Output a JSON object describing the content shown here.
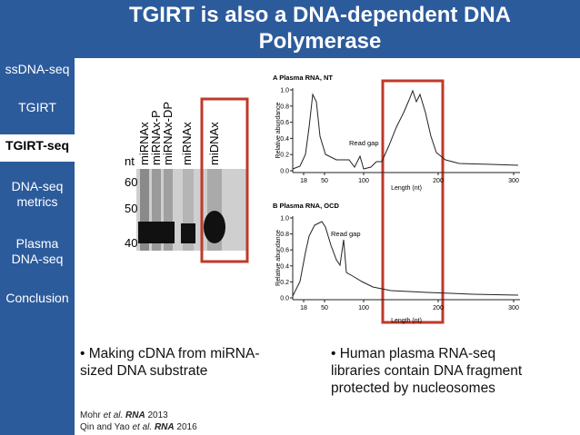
{
  "header": {
    "title": "TGIRT is also a DNA-dependent DNA Polymerase"
  },
  "sidebar": {
    "items": [
      "ssDNA-seq",
      "TGIRT",
      "TGIRT-seq",
      "DNA-seq metrics",
      "Plasma DNA-seq",
      "Conclusion"
    ],
    "active_index": 2
  },
  "gel": {
    "lanes": [
      "miRNAx",
      "miRNAx-P",
      "miRNAx-DP",
      "miRNAx",
      "miDNAx"
    ],
    "size_label": "nt",
    "markers": [
      "60",
      "50",
      "40"
    ]
  },
  "panels": [
    {
      "title": "A Plasma RNA, NT",
      "y_label": "Relative abundance",
      "yticks": [
        "0.0",
        "0.2",
        "0.4",
        "0.6",
        "0.8",
        "1.0"
      ],
      "xticks": [
        "18",
        "50",
        "100",
        "200",
        "300"
      ],
      "x_label": "Length (nt)",
      "annotation": "Read gap"
    },
    {
      "title": "B Plasma RNA, OCD",
      "y_label": "Relative abundance",
      "yticks": [
        "0.0",
        "0.2",
        "0.4",
        "0.6",
        "0.8",
        "1.0"
      ],
      "xticks": [
        "18",
        "50",
        "100",
        "200",
        "300"
      ],
      "x_label": "Length (nt)",
      "annotation": "Read gap"
    }
  ],
  "bullets": [
    "Making cDNA from miRNA-sized DNA substrate",
    "Human plasma RNA-seq libraries contain DNA fragment protected by nucleosomes"
  ],
  "citations": [
    {
      "authors": "Mohr",
      "etal": "et al.",
      "journal": "RNA",
      "year": "2013"
    },
    {
      "authors": "Qin and Yao",
      "etal": "et al.",
      "journal": "RNA",
      "year": "2016"
    }
  ]
}
